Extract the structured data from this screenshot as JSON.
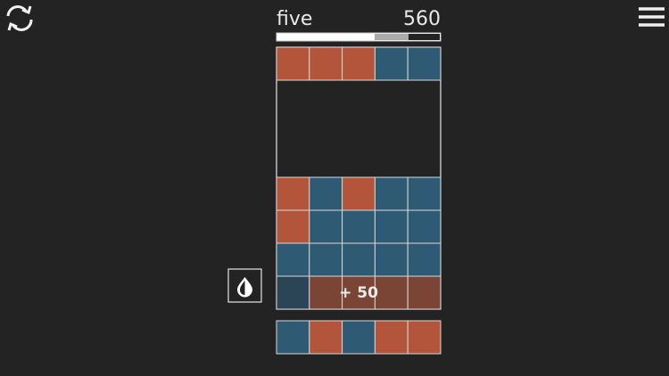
{
  "header": {
    "level": "five",
    "score": "560"
  },
  "popup": "+ 50"
}
